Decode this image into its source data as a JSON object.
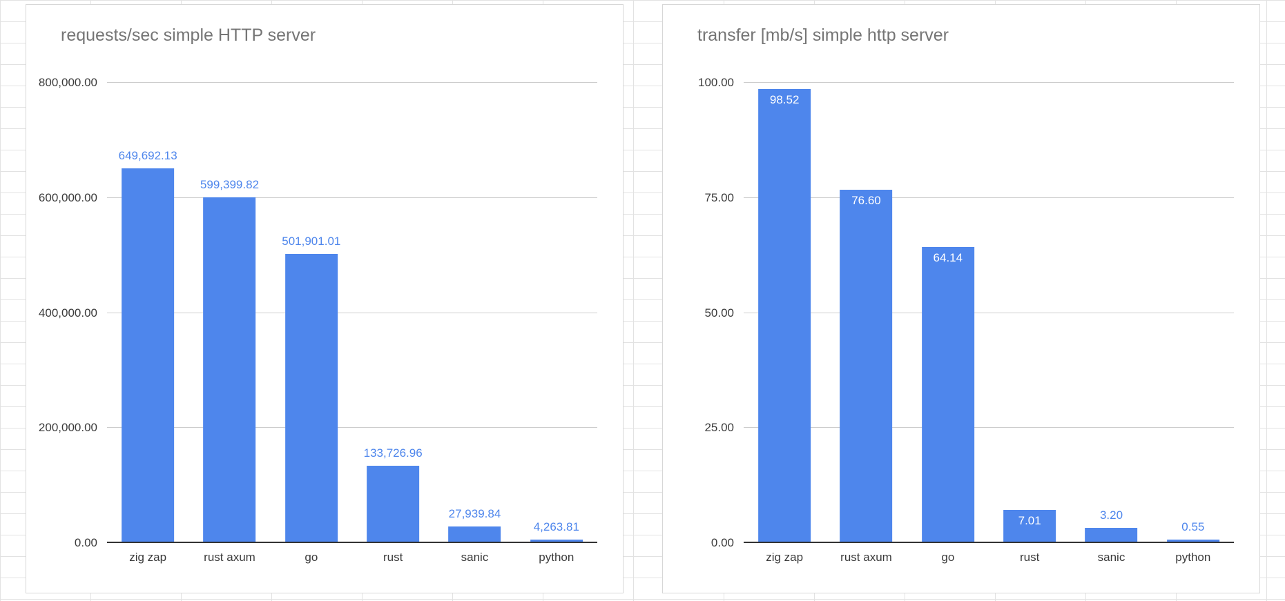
{
  "chart_data": [
    {
      "type": "bar",
      "title": "requests/sec simple HTTP server",
      "categories": [
        "zig zap",
        "rust axum",
        "go",
        "rust",
        "sanic",
        "python"
      ],
      "values": [
        649692.13,
        599399.82,
        501901.01,
        133726.96,
        27939.84,
        4263.81
      ],
      "value_labels": [
        "649,692.13",
        "599,399.82",
        "501,901.01",
        "133,726.96",
        "27,939.84",
        "4,263.81"
      ],
      "label_positions": [
        "above",
        "above",
        "above",
        "above",
        "above",
        "above"
      ],
      "ylim": [
        0,
        800000
      ],
      "yticks": [
        {
          "label": "800,000.00",
          "value": 800000
        },
        {
          "label": "600,000.00",
          "value": 600000
        },
        {
          "label": "400,000.00",
          "value": 400000
        },
        {
          "label": "200,000.00",
          "value": 200000
        },
        {
          "label": "0.00",
          "value": 0
        }
      ],
      "xlabel": "",
      "ylabel": "",
      "grid": true,
      "legend": "none",
      "bar_color": "#4e86ec",
      "data_label_color": "#4e86ec"
    },
    {
      "type": "bar",
      "title": "transfer [mb/s] simple http server",
      "categories": [
        "zig zap",
        "rust axum",
        "go",
        "rust",
        "sanic",
        "python"
      ],
      "values": [
        98.52,
        76.6,
        64.14,
        7.01,
        3.2,
        0.55
      ],
      "value_labels": [
        "98.52",
        "76.60",
        "64.14",
        "7.01",
        "3.20",
        "0.55"
      ],
      "label_positions": [
        "inside",
        "inside",
        "inside",
        "inside",
        "above",
        "above"
      ],
      "ylim": [
        0,
        100
      ],
      "yticks": [
        {
          "label": "100.00",
          "value": 100
        },
        {
          "label": "75.00",
          "value": 75
        },
        {
          "label": "50.00",
          "value": 50
        },
        {
          "label": "25.00",
          "value": 25
        },
        {
          "label": "0.00",
          "value": 0
        }
      ],
      "xlabel": "",
      "ylabel": "",
      "grid": true,
      "legend": "none",
      "bar_color": "#4e86ec",
      "data_label_color": "#4e86ec"
    }
  ]
}
